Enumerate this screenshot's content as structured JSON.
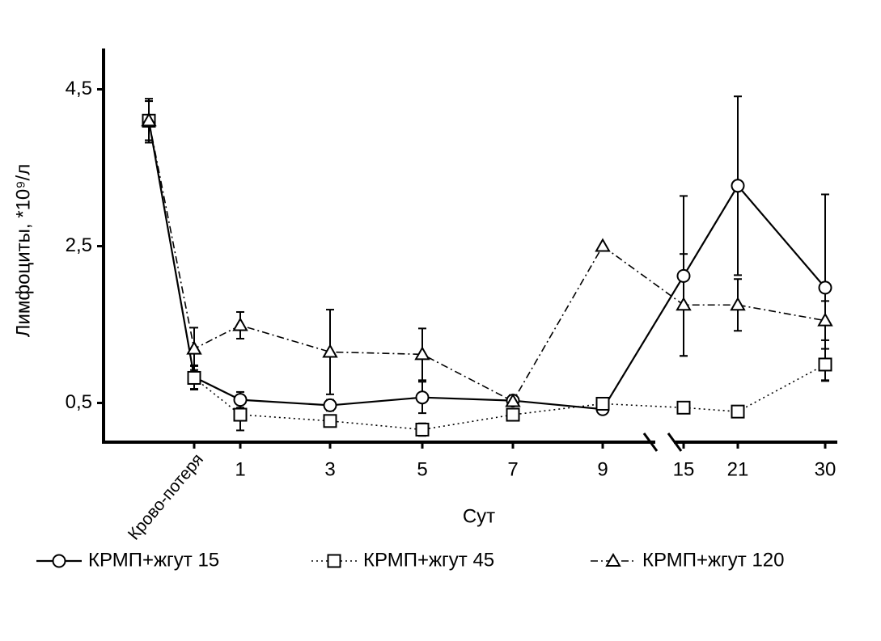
{
  "chart_data": {
    "type": "line",
    "x_label": "Сут",
    "y_label": "Лимфоциты, *10⁹/л",
    "categories": [
      null,
      "Крово-потеря",
      "1",
      "3",
      "5",
      "7",
      "9",
      "15",
      "21",
      "30"
    ],
    "ylim": [
      0,
      5
    ],
    "yticks": [
      {
        "value": 0.5,
        "label": "0,5"
      },
      {
        "value": 2.5,
        "label": "2,5"
      },
      {
        "value": 4.5,
        "label": "4,5"
      }
    ],
    "series": [
      {
        "name": "КРМП+жгут 15",
        "color": "#000000",
        "marker": "circle",
        "line_style": "solid",
        "values": [
          4.1,
          0.83,
          0.54,
          0.47,
          0.57,
          0.53,
          0.42,
          2.12,
          3.27,
          1.97
        ],
        "errors": [
          0.28,
          0.15,
          0.1,
          0.07,
          0.2,
          0.07,
          0.05,
          1.02,
          1.14,
          1.19
        ]
      },
      {
        "name": "КРМП+жгут 45",
        "color": "#000000",
        "marker": "square",
        "line_style": "dotted",
        "values": [
          4.1,
          0.82,
          0.35,
          0.27,
          0.16,
          0.35,
          0.49,
          0.44,
          0.39,
          0.99
        ],
        "errors": [
          0.25,
          0.15,
          0.2,
          null,
          0.08,
          null,
          null,
          null,
          null,
          0.2
        ]
      },
      {
        "name": "КРМП+жгут 120",
        "color": "#000000",
        "marker": "triangle",
        "line_style": "dashdot",
        "values": [
          4.1,
          1.19,
          1.49,
          1.15,
          1.12,
          0.52,
          2.5,
          1.75,
          1.75,
          1.55
        ],
        "errors": [
          0.25,
          0.27,
          0.17,
          0.54,
          0.33,
          null,
          null,
          0.65,
          0.33,
          0.25
        ]
      }
    ]
  }
}
